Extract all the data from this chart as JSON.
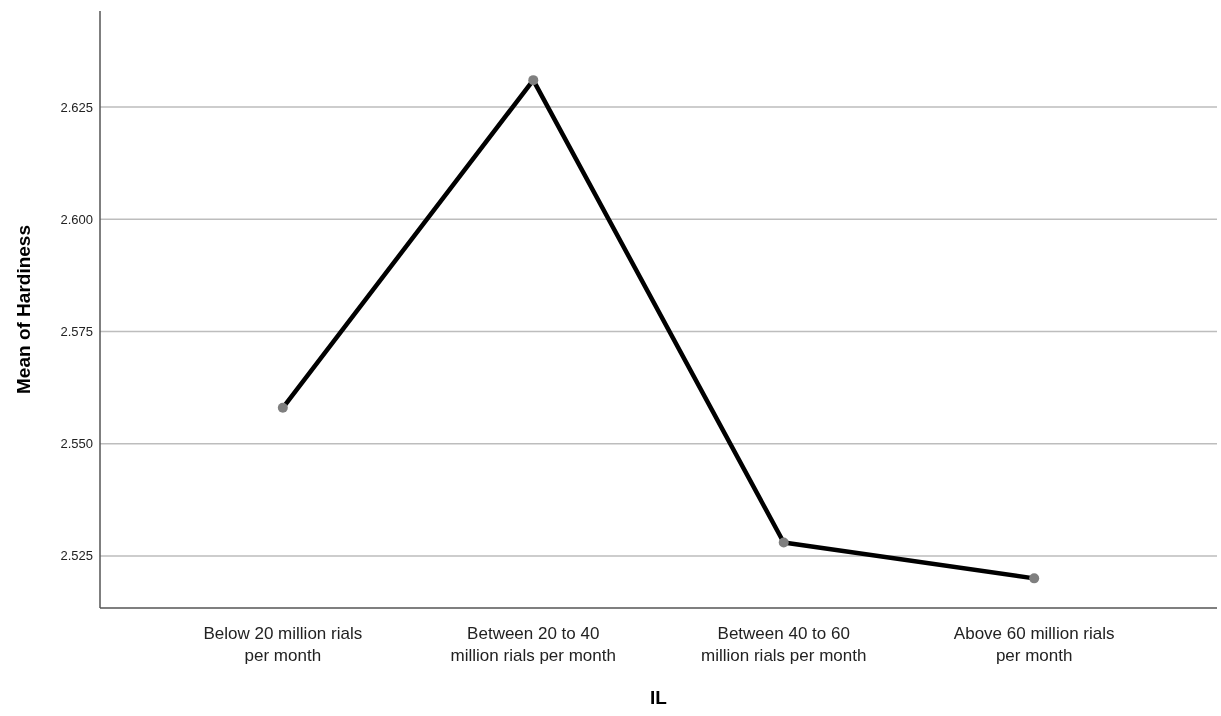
{
  "chart_data": {
    "type": "line",
    "xlabel": "IL",
    "ylabel": "Mean of Hardiness",
    "categories": [
      "Below 20 million rials per month",
      "Between 20 to 40 million rials per month",
      "Between 40 to 60 million rials per month",
      "Above 60 million rials per month"
    ],
    "series": [
      {
        "color": "#000000",
        "values": [
          2.558,
          2.631,
          2.528,
          2.52
        ]
      }
    ],
    "ylim": [
      2.5134,
      2.6464
    ],
    "yticks": [
      {
        "value": 2.525,
        "label": "2.525"
      },
      {
        "value": 2.55,
        "label": "2.550"
      },
      {
        "value": 2.575,
        "label": "2.575"
      },
      {
        "value": 2.6,
        "label": "2.600"
      },
      {
        "value": 2.625,
        "label": "2.625"
      }
    ],
    "grid": "y",
    "marker": "circle",
    "line_style": "solid"
  }
}
